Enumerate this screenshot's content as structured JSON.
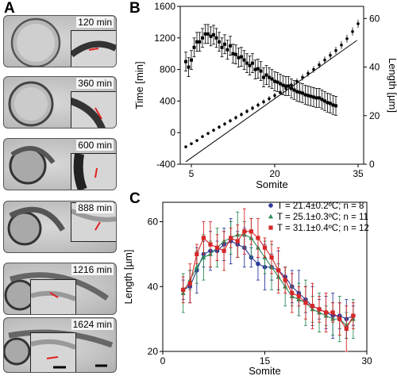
{
  "panels": {
    "a": "A",
    "b": "B",
    "c": "C"
  },
  "frames": [
    {
      "time": "120 min"
    },
    {
      "time": "360 min"
    },
    {
      "time": "600 min"
    },
    {
      "time": "888 min"
    },
    {
      "time": "1216 min"
    },
    {
      "time": "1624 min"
    }
  ],
  "chart_data": [
    {
      "type": "scatter",
      "panel": "B",
      "xlabel": "Somite",
      "ylabel": "Time [min]",
      "ylabel_right": "Length [µm]",
      "xlim": [
        3,
        36
      ],
      "ylim": [
        -400,
        1600
      ],
      "ylim_right": [
        0,
        65
      ],
      "x_ticks": [
        5,
        20,
        35
      ],
      "y_ticks": [
        -400,
        0,
        400,
        800,
        1200,
        1600
      ],
      "y_ticks_right": [
        0,
        20,
        40,
        60
      ],
      "series": [
        {
          "axis": "left",
          "marker": "circle",
          "x": [
            4,
            5,
            6,
            7,
            8,
            9,
            10,
            11,
            12,
            13,
            14,
            15,
            16,
            17,
            18,
            19,
            20,
            21,
            22,
            23,
            24,
            25,
            26,
            27,
            28,
            29,
            30,
            31,
            32,
            33,
            34,
            35
          ],
          "y": [
            -180,
            -140,
            -100,
            -50,
            -10,
            30,
            70,
            110,
            150,
            190,
            230,
            270,
            310,
            350,
            390,
            430,
            470,
            510,
            560,
            605,
            650,
            700,
            750,
            800,
            860,
            920,
            980,
            1040,
            1110,
            1190,
            1280,
            1380
          ]
        },
        {
          "axis": "left",
          "marker": "square",
          "x": [
            4,
            4.5,
            5,
            5.5,
            6,
            6.5,
            7,
            7.5,
            8,
            8.5,
            9,
            9.5,
            10,
            10.5,
            11,
            11.5,
            12,
            12.5,
            13,
            13.5,
            14,
            14.5,
            15,
            15.5,
            16,
            16.5,
            17,
            17.5,
            18,
            18.5,
            19,
            19.5,
            20,
            20.5,
            21,
            21.5,
            22,
            22.5,
            23,
            23.5,
            24,
            24.5,
            25,
            25.5,
            26,
            26.5,
            27,
            27.5,
            28,
            28.5,
            29,
            29.5,
            30,
            30.5,
            31
          ],
          "y": [
            900,
            830,
            920,
            1080,
            1150,
            1150,
            1200,
            1250,
            1250,
            1220,
            1240,
            1200,
            1150,
            1080,
            1120,
            1050,
            1100,
            1000,
            990,
            950,
            960,
            920,
            880,
            850,
            880,
            800,
            810,
            780,
            700,
            730,
            700,
            680,
            650,
            640,
            620,
            600,
            590,
            590,
            560,
            540,
            520,
            510,
            500,
            480,
            470,
            460,
            450,
            440,
            440,
            420,
            400,
            380,
            370,
            350,
            340
          ]
        },
        {
          "axis": "right",
          "type": "line",
          "x": [
            4,
            34.8
          ],
          "y": [
            1,
            51
          ]
        }
      ]
    },
    {
      "type": "line",
      "panel": "C",
      "xlabel": "Somite",
      "ylabel": "Length [µm]",
      "xlim": [
        0,
        30
      ],
      "ylim": [
        20,
        66
      ],
      "x_ticks": [
        0,
        15,
        30
      ],
      "y_ticks": [
        20,
        40,
        60
      ],
      "legend_position": "top-right",
      "series": [
        {
          "name": "T = 21.4±0.2ºC; n = 8",
          "color": "#2e3b9b",
          "marker": "circle",
          "x": [
            3,
            4,
            5,
            6,
            7,
            8,
            9,
            10,
            11,
            12,
            13,
            14,
            15,
            16,
            17,
            18,
            19,
            20,
            21,
            22,
            23,
            24,
            25,
            26,
            27,
            28
          ],
          "y": [
            39,
            40,
            45,
            50,
            51,
            51,
            53,
            54,
            53,
            52,
            49,
            47,
            46,
            46,
            45,
            43,
            40,
            38,
            36,
            34,
            33,
            32,
            31,
            31,
            30,
            31
          ]
        },
        {
          "name": "T = 25.1±0.3ºC; n = 11",
          "color": "#2e8b57",
          "marker": "triangle",
          "x": [
            3,
            4,
            5,
            6,
            7,
            8,
            9,
            10,
            11,
            12,
            13,
            14,
            15,
            16,
            17,
            18,
            19,
            20,
            21,
            22,
            23,
            24,
            25,
            26,
            27,
            28
          ],
          "y": [
            38,
            42,
            46,
            49,
            50,
            52,
            54,
            55,
            56,
            56,
            55,
            52,
            49,
            46,
            43,
            40,
            37,
            36,
            35,
            33,
            32,
            31,
            30,
            30,
            28,
            30
          ]
        },
        {
          "name": "T = 31.1±0.4ºC; n = 12",
          "color": "#d62728",
          "marker": "square",
          "x": [
            3,
            4,
            5,
            6,
            7,
            8,
            9,
            10,
            11,
            12,
            13,
            14,
            15,
            16,
            17,
            18,
            19,
            20,
            21,
            22,
            23,
            24,
            25,
            26,
            27,
            28
          ],
          "y": [
            39,
            41,
            50,
            55,
            53,
            52,
            51,
            55,
            54,
            57,
            57,
            55,
            52,
            49,
            45,
            42,
            38,
            37,
            35,
            34,
            33,
            32,
            32,
            30,
            27,
            31
          ]
        }
      ]
    }
  ]
}
